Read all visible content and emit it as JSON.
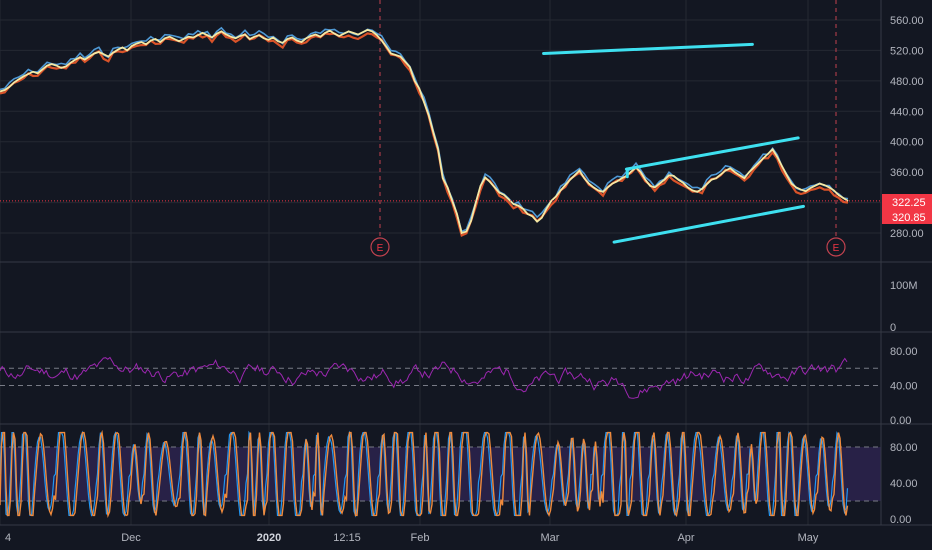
{
  "chart_data": [
    {
      "type": "line",
      "pane": "price",
      "y_axis_labels": [
        "560.00",
        "520.00",
        "480.00",
        "440.00",
        "400.00",
        "360.00",
        "280.00"
      ],
      "ylim": [
        260,
        575
      ],
      "x_axis_labels": [
        {
          "label": "4",
          "bold": false
        },
        {
          "label": "Dec",
          "bold": false
        },
        {
          "label": "2020",
          "bold": true
        },
        {
          "label": "12:15",
          "bold": false
        },
        {
          "label": "Feb",
          "bold": false
        },
        {
          "label": "Mar",
          "bold": false
        },
        {
          "label": "Apr",
          "bold": false
        },
        {
          "label": "May",
          "bold": false
        }
      ],
      "price_badges": [
        {
          "label": "322.25",
          "value": 322.25
        },
        {
          "label": "320.85",
          "value": 320.85
        }
      ],
      "current_price": 322.25,
      "earnings_markers": [
        "E",
        "E"
      ],
      "series": [
        {
          "values": [
            466,
            468,
            472,
            478,
            482,
            486,
            489,
            492,
            490,
            495,
            500,
            502,
            500,
            497,
            499,
            504,
            508,
            511,
            508,
            512,
            516,
            518,
            515,
            512,
            517,
            521,
            524,
            520,
            526,
            529,
            531,
            528,
            533,
            535,
            531,
            536,
            538,
            535,
            532,
            535,
            538,
            537,
            540,
            543,
            540,
            537,
            542,
            545,
            541,
            538,
            536,
            539,
            541,
            535,
            538,
            540,
            536,
            534,
            537,
            532,
            530,
            535,
            537,
            533,
            531,
            536,
            539,
            541,
            538,
            543,
            546,
            542,
            539,
            542,
            545,
            543,
            541,
            544,
            547,
            545,
            540,
            533,
            525,
            516,
            514,
            512,
            505,
            498,
            480,
            470,
            452,
            435,
            412,
            390,
            352,
            340,
            322,
            305,
            280,
            282,
            296,
            320,
            342,
            353,
            347,
            340,
            333,
            330,
            324,
            318,
            316,
            312,
            305,
            302,
            295,
            300,
            312,
            322,
            328,
            336,
            343,
            350,
            356,
            362,
            352,
            345,
            340,
            336,
            334,
            340,
            345,
            348,
            352,
            355,
            361,
            366,
            360,
            350,
            342,
            340,
            345,
            350,
            356,
            355,
            350,
            346,
            340,
            336,
            334,
            338,
            344,
            350,
            352,
            357,
            362,
            365,
            360,
            356,
            352,
            360,
            366,
            372,
            378,
            384,
            390,
            380,
            368,
            356,
            345,
            340,
            337,
            335,
            339,
            342,
            345,
            343,
            340,
            336,
            330,
            326,
            322
          ]
        }
      ],
      "trendlines": [
        {
          "from": [
            0.617,
            516
          ],
          "to": [
            0.854,
            528
          ]
        },
        {
          "from": [
            0.711,
            364
          ],
          "to": [
            0.906,
            405
          ]
        },
        {
          "from": [
            0.697,
            268
          ],
          "to": [
            0.912,
            315
          ]
        },
        {
          "from": [
            0.712,
            354
          ],
          "to": [
            0.712,
            364
          ]
        }
      ]
    },
    {
      "type": "bar",
      "pane": "volume",
      "y_axis_labels": [
        "100M",
        "0"
      ]
    },
    {
      "type": "line",
      "pane": "rsi",
      "y_axis_labels": [
        "80.00",
        "40.00",
        "0.00"
      ],
      "ylim": [
        0,
        100
      ],
      "bands": [
        60,
        40
      ]
    },
    {
      "type": "line",
      "pane": "stochastic",
      "y_axis_labels": [
        "80.00",
        "40.00",
        "0.00"
      ],
      "ylim": [
        0,
        100
      ],
      "bands": [
        80,
        20
      ]
    }
  ],
  "colors": {
    "background": "#131722",
    "grid": "#242833",
    "divider": "#363a45",
    "price_line": "#f5e9a4",
    "price_line_bear": "#ef5a2a",
    "price_line_bull": "#5ab0f5",
    "trendline": "#3ee0f0",
    "rsi_line": "#9c27b0",
    "stoch_k": "#2196f3",
    "stoch_d": "#ef8a3c",
    "stoch_band": "#3b2a66",
    "current_price_line": "#f23645",
    "badge": "#f23645",
    "earnings_line": "#c2424f"
  }
}
